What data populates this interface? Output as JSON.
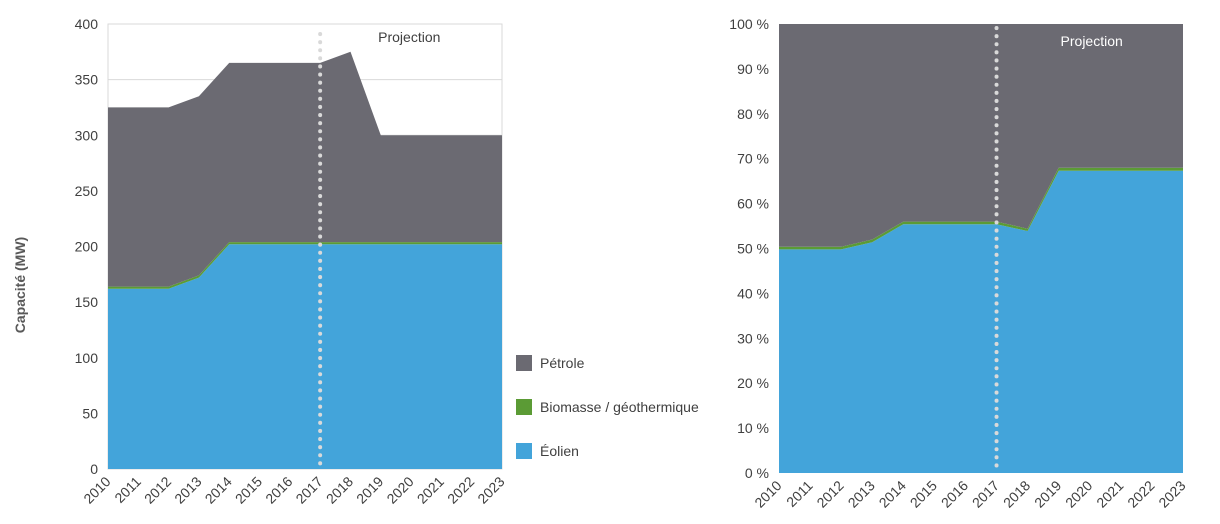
{
  "colors": {
    "petrole": "#6b6a72",
    "biomasse": "#5b9b35",
    "eolien": "#43a4da",
    "divider": "#d9d9d9"
  },
  "projection_label": "Projection",
  "ylabel": "Capacité (MW)",
  "legend": [
    {
      "label": "Pétrole",
      "color": "#6b6a72"
    },
    {
      "label": "Biomasse / géothermique",
      "color": "#5b9b35"
    },
    {
      "label": "Éolien",
      "color": "#43a4da"
    }
  ],
  "chart_data": [
    {
      "type": "area",
      "stacked": true,
      "x": [
        "2010",
        "2011",
        "2012",
        "2013",
        "2014",
        "2015",
        "2016",
        "2017",
        "2018",
        "2019",
        "2020",
        "2021",
        "2022",
        "2023"
      ],
      "ylabel": "Capacité (MW)",
      "ylim": [
        0,
        400
      ],
      "yticks": [
        "0",
        "50",
        "100",
        "150",
        "200",
        "250",
        "300",
        "350",
        "400"
      ],
      "projection_from": "2017",
      "series": [
        {
          "name": "Éolien",
          "values": [
            162,
            162,
            162,
            172,
            202,
            202,
            202,
            202,
            202,
            202,
            202,
            202,
            202,
            202
          ]
        },
        {
          "name": "Biomasse / géothermique",
          "values": [
            2,
            2,
            2,
            2,
            2,
            2,
            2,
            2,
            2,
            2,
            2,
            2,
            2,
            2
          ]
        },
        {
          "name": "Pétrole",
          "values": [
            161,
            161,
            161,
            161,
            161,
            161,
            161,
            161,
            171,
            96,
            96,
            96,
            96,
            96
          ]
        }
      ]
    },
    {
      "type": "area",
      "stacked": true,
      "x": [
        "2010",
        "2011",
        "2012",
        "2013",
        "2014",
        "2015",
        "2016",
        "2017",
        "2018",
        "2019",
        "2020",
        "2021",
        "2022",
        "2023"
      ],
      "ylim": [
        0,
        100
      ],
      "yticks": [
        "0 %",
        "10 %",
        "20 %",
        "30 %",
        "40 %",
        "50 %",
        "60 %",
        "70 %",
        "80 %",
        "90 %",
        "100 %"
      ],
      "projection_from": "2017",
      "series": [
        {
          "name": "Éolien",
          "values": [
            49.8,
            49.8,
            49.8,
            51.4,
            55.4,
            55.4,
            55.4,
            55.4,
            53.9,
            67.3,
            67.3,
            67.3,
            67.3,
            67.3
          ]
        },
        {
          "name": "Biomasse / géothermique",
          "values": [
            0.6,
            0.6,
            0.6,
            0.6,
            0.6,
            0.6,
            0.6,
            0.6,
            0.5,
            0.7,
            0.7,
            0.7,
            0.7,
            0.7
          ]
        },
        {
          "name": "Pétrole",
          "values": [
            49.6,
            49.6,
            49.6,
            48.0,
            44.0,
            44.0,
            44.0,
            44.0,
            45.6,
            32.0,
            32.0,
            32.0,
            32.0,
            32.0
          ]
        }
      ]
    }
  ]
}
